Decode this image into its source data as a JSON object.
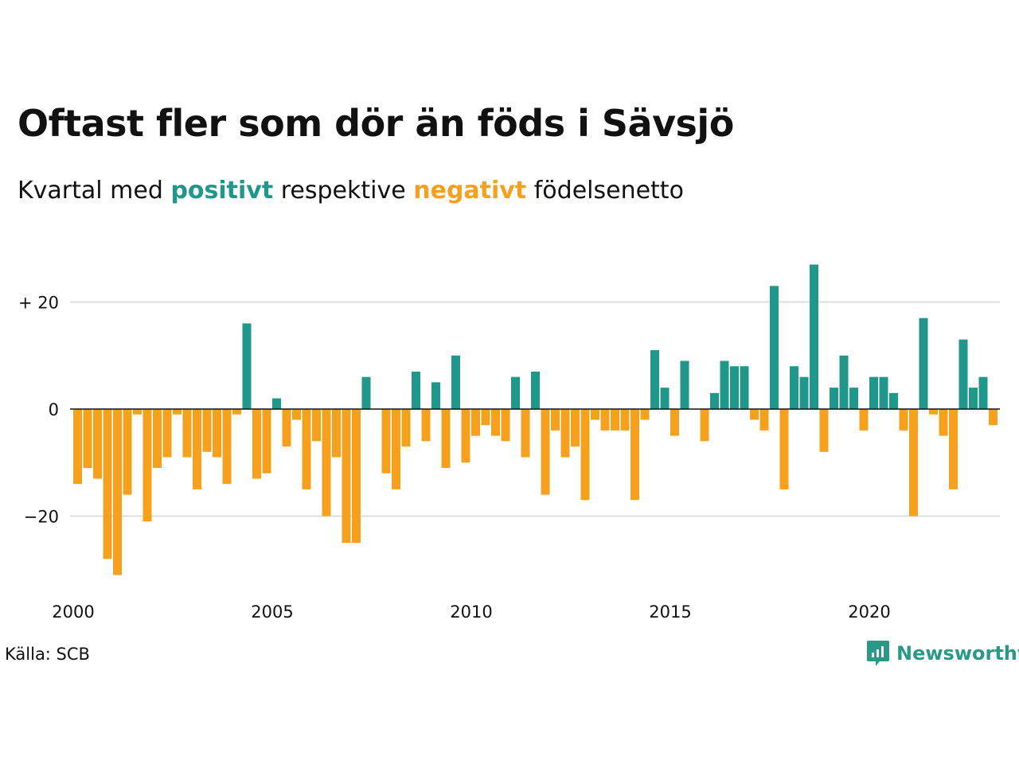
{
  "title": "Oftast fler som dör än föds i Sävsjö",
  "subtitle": {
    "prefix": "Kvartal med",
    "positive": "positivt",
    "middle": "respektive",
    "negative": "negativt",
    "suffix": "födelsenetto"
  },
  "source": "Källa: SCB",
  "brand": "Newsworthy",
  "colors": {
    "positive": "#1f978a",
    "negative": "#f5a11e",
    "grid": "#dddddd",
    "brand": "#2a9a86"
  },
  "chart_data": {
    "type": "bar",
    "x_start": "2000 Q1",
    "ylim": [
      -35,
      30
    ],
    "yticks": [
      {
        "value": 20,
        "label": "+ 20"
      },
      {
        "value": 0,
        "label": "0"
      },
      {
        "value": -20,
        "label": "−20"
      }
    ],
    "xticks": [
      {
        "year": 2000,
        "label": "2000"
      },
      {
        "year": 2005,
        "label": "2005"
      },
      {
        "year": 2010,
        "label": "2010"
      },
      {
        "year": 2015,
        "label": "2015"
      },
      {
        "year": 2020,
        "label": "2020"
      }
    ],
    "grid": true,
    "values": [
      -14,
      -11,
      -13,
      -28,
      -31,
      -16,
      -1,
      -21,
      -11,
      -9,
      -1,
      -9,
      -15,
      -8,
      -9,
      -14,
      -1,
      16,
      -13,
      -12,
      2,
      -7,
      -2,
      -15,
      -6,
      -20,
      -9,
      -25,
      -25,
      6,
      0,
      -12,
      -15,
      -7,
      7,
      -6,
      5,
      -11,
      10,
      -10,
      -5,
      -3,
      -5,
      -6,
      6,
      -9,
      7,
      -16,
      -4,
      -9,
      -7,
      -17,
      -2,
      -4,
      -4,
      -4,
      -17,
      -2,
      11,
      4,
      -5,
      9,
      0,
      -6,
      3,
      9,
      8,
      8,
      -2,
      -4,
      23,
      -15,
      8,
      6,
      27,
      -8,
      4,
      10,
      4,
      -4,
      6,
      6,
      3,
      -4,
      -20,
      17,
      -1,
      -5,
      -15,
      13,
      4,
      6,
      -3
    ]
  }
}
